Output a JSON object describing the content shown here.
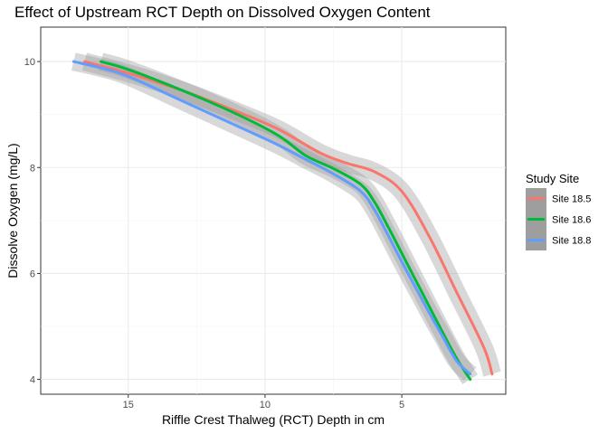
{
  "chart_data": {
    "type": "line",
    "title": "Effect of Upstream RCT Depth on Dissolved Oxygen Content",
    "xlabel": "Riffle Crest Thalweg (RCT) Depth in cm",
    "ylabel": "Dissolve Oxygen (mg/L)",
    "x_reversed": true,
    "xlim": [
      18.2,
      1.2
    ],
    "ylim": [
      3.72,
      10.65
    ],
    "x_ticks": [
      15,
      10,
      5
    ],
    "y_ticks": [
      4,
      6,
      8,
      10
    ],
    "grid": true,
    "confidence_band": true,
    "legend": {
      "title": "Study Site",
      "position": "right"
    },
    "series": [
      {
        "name": "Site 18.5",
        "color": "#F8766D",
        "x": [
          16.6,
          15,
          13,
          11,
          9.5,
          8,
          7,
          6,
          5,
          4,
          3,
          2,
          1.7
        ],
        "y": [
          10.0,
          9.78,
          9.45,
          9.05,
          8.72,
          8.28,
          8.08,
          7.92,
          7.55,
          6.7,
          5.65,
          4.6,
          4.1
        ]
      },
      {
        "name": "Site 18.6",
        "color": "#00BA38",
        "x": [
          16,
          15,
          13,
          11,
          9.5,
          8.5,
          7.5,
          6.5,
          6,
          5.5,
          5,
          4.5,
          4,
          3.5,
          3,
          2.5
        ],
        "y": [
          10.0,
          9.85,
          9.45,
          9.0,
          8.6,
          8.22,
          7.98,
          7.68,
          7.35,
          6.88,
          6.38,
          5.88,
          5.38,
          4.88,
          4.4,
          4.0
        ]
      },
      {
        "name": "Site 18.8",
        "color": "#619CFF",
        "x": [
          17,
          16,
          15,
          13,
          11,
          9.5,
          8.5,
          7.5,
          6.5,
          6,
          5.5,
          5,
          4.5,
          4,
          3.5,
          3,
          2.5
        ],
        "y": [
          10.0,
          9.88,
          9.72,
          9.25,
          8.78,
          8.42,
          8.15,
          7.88,
          7.55,
          7.2,
          6.72,
          6.22,
          5.74,
          5.26,
          4.8,
          4.35,
          4.1
        ]
      }
    ]
  }
}
